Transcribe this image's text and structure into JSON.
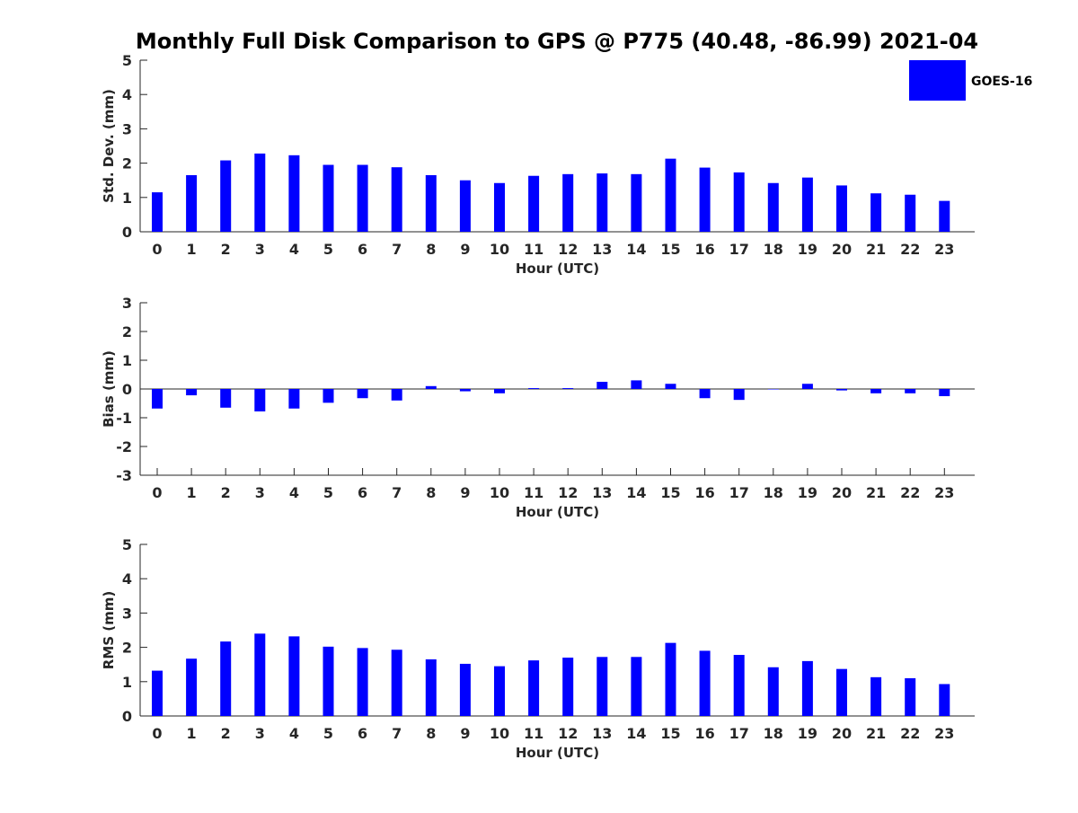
{
  "chart_data": {
    "title": "Monthly Full Disk Comparison to GPS @ P775 (40.48, -86.99) 2021-04",
    "type": "bar",
    "legend": {
      "label": "GOES-16",
      "placement": "top-right",
      "color": "#0000ff"
    },
    "bar_color": "#0000ff",
    "categories": [
      "0",
      "1",
      "2",
      "3",
      "4",
      "5",
      "6",
      "7",
      "8",
      "9",
      "10",
      "11",
      "12",
      "13",
      "14",
      "15",
      "16",
      "17",
      "18",
      "19",
      "20",
      "21",
      "22",
      "23"
    ],
    "panels": [
      {
        "key": "std",
        "xlabel": "Hour (UTC)",
        "ylabel": "Std. Dev. (mm)",
        "ylim": [
          0,
          5
        ],
        "yticks": [
          "0",
          "1",
          "2",
          "3",
          "4",
          "5"
        ],
        "grid": false,
        "series": [
          {
            "name": "GOES-16",
            "values": [
              1.15,
              1.65,
              2.08,
              2.28,
              2.23,
              1.95,
              1.95,
              1.88,
              1.65,
              1.5,
              1.42,
              1.63,
              1.68,
              1.7,
              1.68,
              2.13,
              1.87,
              1.73,
              1.42,
              1.58,
              1.35,
              1.12,
              1.08,
              0.9
            ]
          }
        ]
      },
      {
        "key": "bias",
        "xlabel": "Hour (UTC)",
        "ylabel": "Bias (mm)",
        "ylim": [
          -3,
          3
        ],
        "yticks": [
          "-3",
          "-2",
          "-1",
          "0",
          "1",
          "2",
          "3"
        ],
        "grid": false,
        "zero_line": true,
        "series": [
          {
            "name": "GOES-16",
            "values": [
              -0.68,
              -0.22,
              -0.65,
              -0.78,
              -0.68,
              -0.48,
              -0.32,
              -0.4,
              0.1,
              -0.08,
              -0.15,
              0.03,
              0.03,
              0.25,
              0.3,
              0.18,
              -0.32,
              -0.38,
              0.0,
              0.18,
              -0.05,
              -0.15,
              -0.15,
              -0.25
            ]
          }
        ]
      },
      {
        "key": "rms",
        "xlabel": "Hour (UTC)",
        "ylabel": "RMS (mm)",
        "ylim": [
          0,
          5
        ],
        "yticks": [
          "0",
          "1",
          "2",
          "3",
          "4",
          "5"
        ],
        "grid": false,
        "series": [
          {
            "name": "GOES-16",
            "values": [
              1.32,
              1.67,
              2.17,
              2.4,
              2.32,
              2.02,
              1.98,
              1.93,
              1.65,
              1.52,
              1.45,
              1.62,
              1.7,
              1.72,
              1.72,
              2.13,
              1.9,
              1.78,
              1.42,
              1.6,
              1.37,
              1.13,
              1.1,
              0.93
            ]
          }
        ]
      }
    ]
  }
}
